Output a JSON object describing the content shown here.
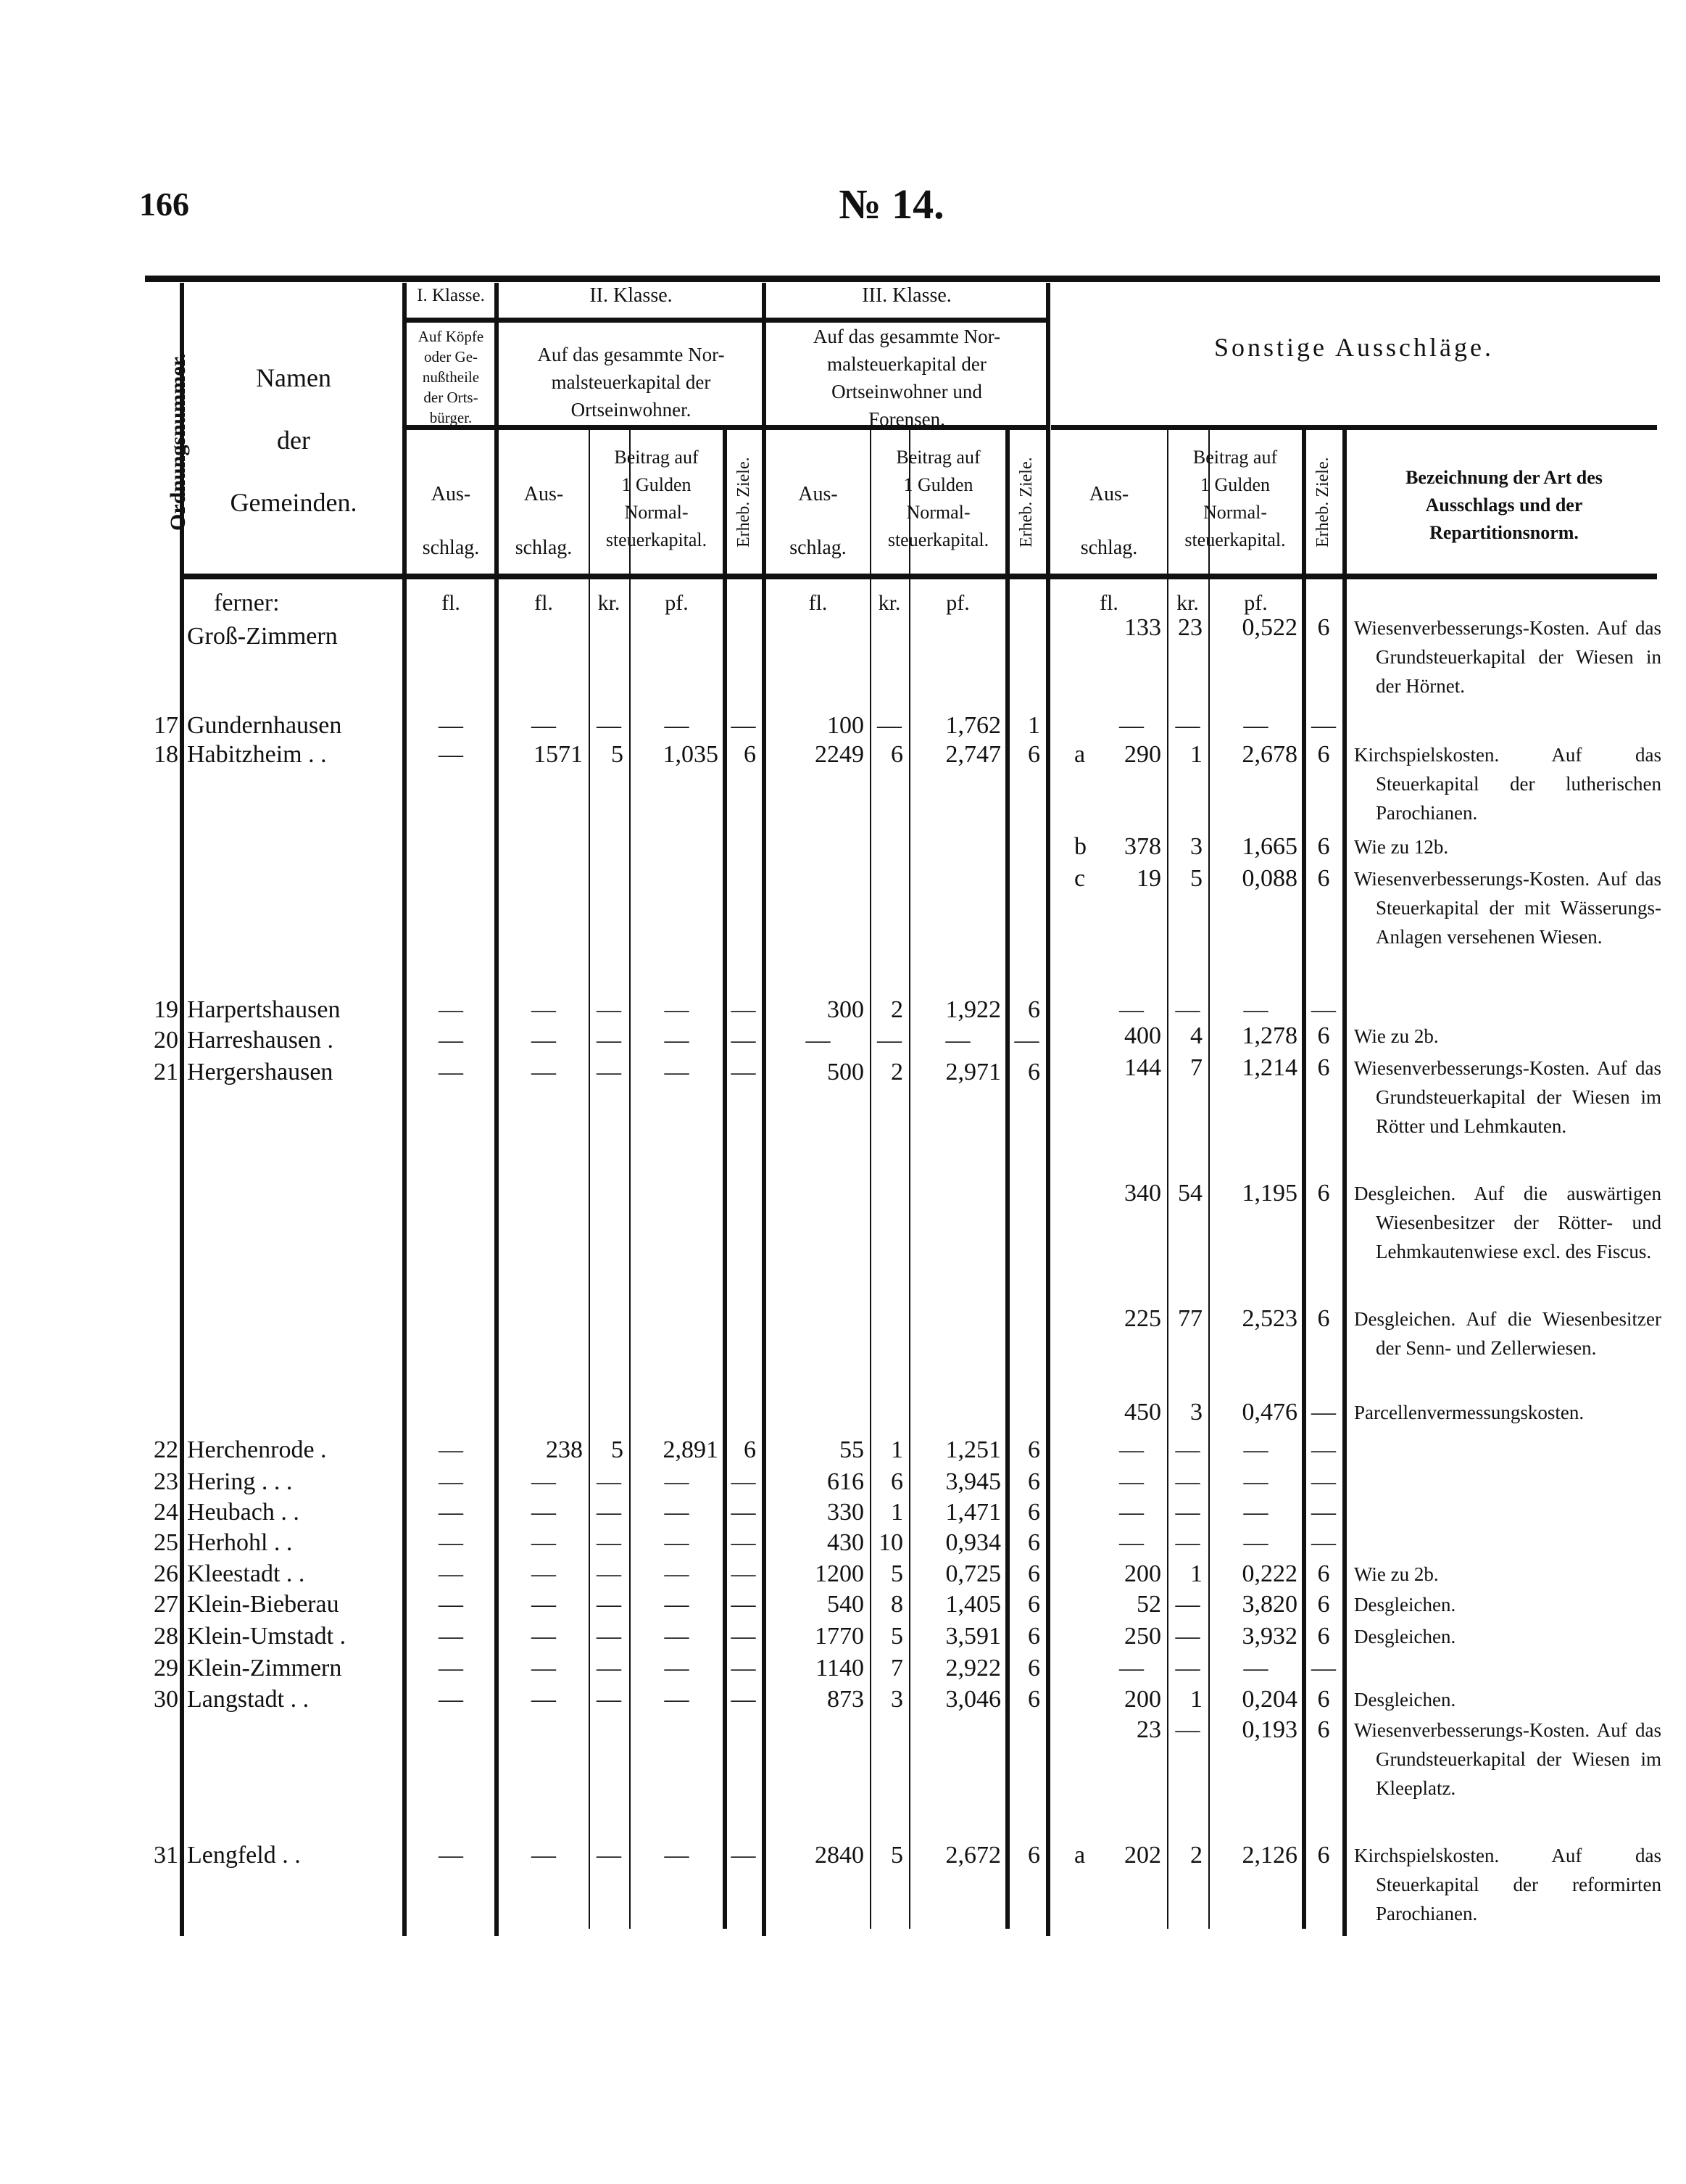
{
  "page_number": "166",
  "title": "№ 14.",
  "header": {
    "ordnungsnummer": "Ordnungsnummer.",
    "namen": [
      "Namen",
      "der",
      "Gemeinden."
    ],
    "klasse1": {
      "label": "I. Klasse.",
      "basis": [
        "Auf Köpfe",
        "oder Ge-",
        "nußtheile",
        "der Orts-",
        "bürger."
      ],
      "aus": [
        "Aus-",
        "schlag."
      ]
    },
    "klasse2": {
      "label": "II. Klasse.",
      "basis": [
        "Auf das gesammte Nor-",
        "malsteuerkapital der",
        "Ortseinwohner."
      ],
      "aus": [
        "Aus-",
        "schlag."
      ],
      "beitrag": [
        "Beitrag auf",
        "1 Gulden",
        "Normal-",
        "steuerkapital."
      ],
      "ziele": "Erheb. Ziele."
    },
    "klasse3": {
      "label": "III. Klasse.",
      "basis": [
        "Auf das gesammte Nor-",
        "malsteuerkapital der",
        "Ortseinwohner und",
        "Forensen."
      ],
      "aus": [
        "Aus-",
        "schlag."
      ],
      "beitrag": [
        "Beitrag auf",
        "1 Gulden",
        "Normal-",
        "steuerkapital."
      ],
      "ziele": "Erheb. Ziele."
    },
    "sonstige": {
      "label": "Sonstige Ausschläge.",
      "aus": [
        "Aus-",
        "schlag."
      ],
      "beitrag": [
        "Beitrag auf",
        "1 Gulden",
        "Normal-",
        "steuerkapital."
      ],
      "ziele": "Erheb. Ziele.",
      "bezeichnung": [
        "Bezeichnung der Art des",
        "Ausschlags und der",
        "Repartitionsnorm."
      ]
    }
  },
  "units": {
    "fl": "fl.",
    "kr": "kr.",
    "pf": "pf."
  },
  "continuation": "ferner:",
  "rows": [
    {
      "no": "",
      "name": "Groß-Zimmern",
      "k1": "",
      "k2": [
        "",
        "",
        "",
        ""
      ],
      "k3": [
        "",
        "",
        "",
        ""
      ],
      "sonstige": [
        {
          "letter": "",
          "fl": "133",
          "kr": "23",
          "pf": "0,522",
          "ziele": "6",
          "desc": "Wiesenverbesserungs-Kosten. Auf das Grundsteuerkapital der Wiesen in der Hörnet."
        }
      ]
    },
    {
      "no": "17",
      "name": "Gundernhausen",
      "k1": "—",
      "k2": [
        "—",
        "—",
        "—",
        "—"
      ],
      "k3": [
        "100",
        "—",
        "1,762",
        "1"
      ],
      "sonstige": [
        {
          "letter": "",
          "fl": "—",
          "kr": "—",
          "pf": "—",
          "ziele": "—",
          "desc": ""
        }
      ]
    },
    {
      "no": "18",
      "name": "Habitzheim . .",
      "k1": "—",
      "k2": [
        "1571",
        "5",
        "1,035",
        "6"
      ],
      "k3": [
        "2249",
        "6",
        "2,747",
        "6"
      ],
      "sonstige": [
        {
          "letter": "a",
          "fl": "290",
          "kr": "1",
          "pf": "2,678",
          "ziele": "6",
          "desc": "Kirchspielskosten. Auf das Steuerkapital der lutherischen Parochianen."
        },
        {
          "letter": "b",
          "fl": "378",
          "kr": "3",
          "pf": "1,665",
          "ziele": "6",
          "desc": "Wie zu 12b."
        },
        {
          "letter": "c",
          "fl": "19",
          "kr": "5",
          "pf": "0,088",
          "ziele": "6",
          "desc": "Wiesenverbesserungs-Kosten. Auf das Steuerkapital der mit Wässerungs-Anlagen versehenen Wiesen."
        }
      ]
    },
    {
      "no": "19",
      "name": "Harpertshausen",
      "k1": "—",
      "k2": [
        "—",
        "—",
        "—",
        "—"
      ],
      "k3": [
        "300",
        "2",
        "1,922",
        "6"
      ],
      "sonstige": [
        {
          "letter": "",
          "fl": "—",
          "kr": "—",
          "pf": "—",
          "ziele": "—",
          "desc": ""
        }
      ]
    },
    {
      "no": "20",
      "name": "Harreshausen .",
      "k1": "—",
      "k2": [
        "—",
        "—",
        "—",
        "—"
      ],
      "k3": [
        "—",
        "—",
        "—",
        "—"
      ],
      "sonstige": [
        {
          "letter": "",
          "fl": "400",
          "kr": "4",
          "pf": "1,278",
          "ziele": "6",
          "desc": "Wie zu 2b."
        }
      ]
    },
    {
      "no": "21",
      "name": "Hergershausen",
      "k1": "—",
      "k2": [
        "—",
        "—",
        "—",
        "—"
      ],
      "k3": [
        "500",
        "2",
        "2,971",
        "6"
      ],
      "sonstige": [
        {
          "letter": "",
          "fl": "144",
          "kr": "7",
          "pf": "1,214",
          "ziele": "6",
          "desc": "Wiesenverbesserungs-Kosten. Auf das Grundsteuerkapital der Wiesen im Rötter und Lehmkauten."
        },
        {
          "letter": "",
          "fl": "340",
          "kr": "54",
          "pf": "1,195",
          "ziele": "6",
          "desc": "Desgleichen. Auf die auswärtigen Wiesenbesitzer der Rötter- und Lehmkautenwiese excl. des Fiscus."
        },
        {
          "letter": "",
          "fl": "225",
          "kr": "77",
          "pf": "2,523",
          "ziele": "6",
          "desc": "Desgleichen. Auf die Wiesenbesitzer der Senn- und Zellerwiesen."
        },
        {
          "letter": "",
          "fl": "450",
          "kr": "3",
          "pf": "0,476",
          "ziele": "—",
          "desc": "Parcellenvermessungskosten."
        }
      ]
    },
    {
      "no": "22",
      "name": "Herchenrode .",
      "k1": "—",
      "k2": [
        "238",
        "5",
        "2,891",
        "6"
      ],
      "k3": [
        "55",
        "1",
        "1,251",
        "6"
      ],
      "sonstige": [
        {
          "letter": "",
          "fl": "—",
          "kr": "—",
          "pf": "—",
          "ziele": "—",
          "desc": ""
        }
      ]
    },
    {
      "no": "23",
      "name": "Hering . . .",
      "k1": "—",
      "k2": [
        "—",
        "—",
        "—",
        "—"
      ],
      "k3": [
        "616",
        "6",
        "3,945",
        "6"
      ],
      "sonstige": [
        {
          "letter": "",
          "fl": "—",
          "kr": "—",
          "pf": "—",
          "ziele": "—",
          "desc": ""
        }
      ]
    },
    {
      "no": "24",
      "name": "Heubach . .",
      "k1": "—",
      "k2": [
        "—",
        "—",
        "—",
        "—"
      ],
      "k3": [
        "330",
        "1",
        "1,471",
        "6"
      ],
      "sonstige": [
        {
          "letter": "",
          "fl": "—",
          "kr": "—",
          "pf": "—",
          "ziele": "—",
          "desc": ""
        }
      ]
    },
    {
      "no": "25",
      "name": "Herhohl . .",
      "k1": "—",
      "k2": [
        "—",
        "—",
        "—",
        "—"
      ],
      "k3": [
        "430",
        "10",
        "0,934",
        "6"
      ],
      "sonstige": [
        {
          "letter": "",
          "fl": "—",
          "kr": "—",
          "pf": "—",
          "ziele": "—",
          "desc": ""
        }
      ]
    },
    {
      "no": "26",
      "name": "Kleestadt . .",
      "k1": "—",
      "k2": [
        "—",
        "—",
        "—",
        "—"
      ],
      "k3": [
        "1200",
        "5",
        "0,725",
        "6"
      ],
      "sonstige": [
        {
          "letter": "",
          "fl": "200",
          "kr": "1",
          "pf": "0,222",
          "ziele": "6",
          "desc": "Wie zu 2b."
        }
      ]
    },
    {
      "no": "27",
      "name": "Klein-Bieberau",
      "k1": "—",
      "k2": [
        "—",
        "—",
        "—",
        "—"
      ],
      "k3": [
        "540",
        "8",
        "1,405",
        "6"
      ],
      "sonstige": [
        {
          "letter": "",
          "fl": "52",
          "kr": "—",
          "pf": "3,820",
          "ziele": "6",
          "desc": "Desgleichen."
        }
      ]
    },
    {
      "no": "28",
      "name": "Klein-Umstadt .",
      "k1": "—",
      "k2": [
        "—",
        "—",
        "—",
        "—"
      ],
      "k3": [
        "1770",
        "5",
        "3,591",
        "6"
      ],
      "sonstige": [
        {
          "letter": "",
          "fl": "250",
          "kr": "—",
          "pf": "3,932",
          "ziele": "6",
          "desc": "Desgleichen."
        }
      ]
    },
    {
      "no": "29",
      "name": "Klein-Zimmern",
      "k1": "—",
      "k2": [
        "—",
        "—",
        "—",
        "—"
      ],
      "k3": [
        "1140",
        "7",
        "2,922",
        "6"
      ],
      "sonstige": [
        {
          "letter": "",
          "fl": "—",
          "kr": "—",
          "pf": "—",
          "ziele": "—",
          "desc": ""
        }
      ]
    },
    {
      "no": "30",
      "name": "Langstadt . .",
      "k1": "—",
      "k2": [
        "—",
        "—",
        "—",
        "—"
      ],
      "k3": [
        "873",
        "3",
        "3,046",
        "6"
      ],
      "sonstige": [
        {
          "letter": "",
          "fl": "200",
          "kr": "1",
          "pf": "0,204",
          "ziele": "6",
          "desc": "Desgleichen."
        },
        {
          "letter": "",
          "fl": "23",
          "kr": "—",
          "pf": "0,193",
          "ziele": "6",
          "desc": "Wiesenverbesserungs-Kosten. Auf das Grundsteuerkapital der Wiesen im Kleeplatz."
        }
      ]
    },
    {
      "no": "31",
      "name": "Lengfeld . .",
      "k1": "—",
      "k2": [
        "—",
        "—",
        "—",
        "—"
      ],
      "k3": [
        "2840",
        "5",
        "2,672",
        "6"
      ],
      "sonstige": [
        {
          "letter": "a",
          "fl": "202",
          "kr": "2",
          "pf": "2,126",
          "ziele": "6",
          "desc": "Kirchspielskosten. Auf das Steuerkapital der reformirten Parochianen."
        }
      ]
    }
  ]
}
